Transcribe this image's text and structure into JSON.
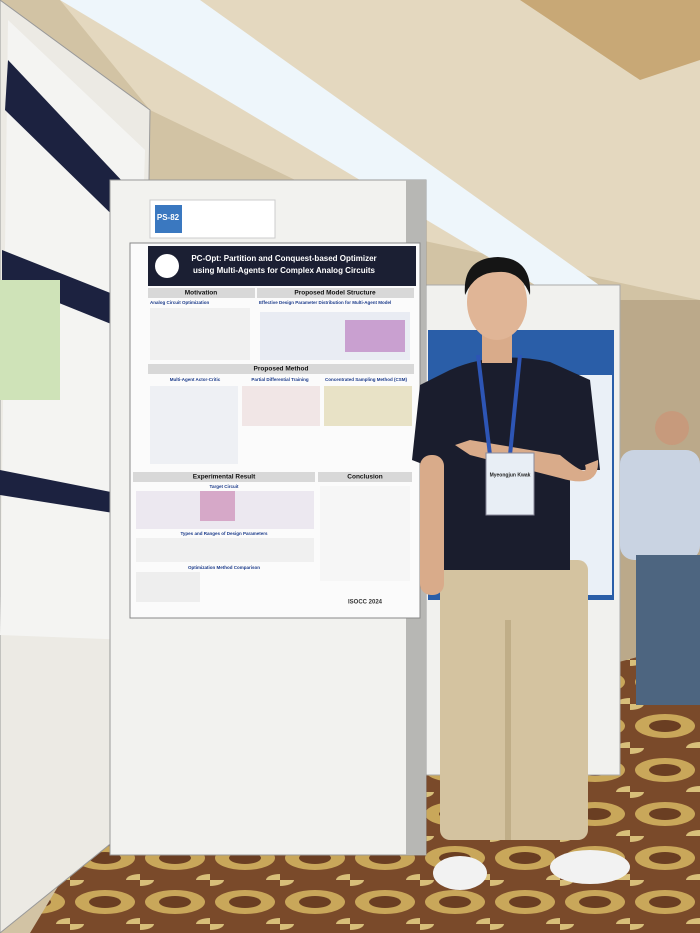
{
  "poster": {
    "badge": "PS-82",
    "title": [
      "PC-Opt: Partition and Conquest-based Optimizer",
      "using Multi-Agents for Complex Analog Circuits"
    ],
    "sections": {
      "motivation": "Motivation",
      "model_structure": "Proposed Model Structure",
      "method": "Proposed Method",
      "experimental": "Experimental Result",
      "conclusion": "Conclusion"
    },
    "subsections": [
      "Analog Circuit Optimization",
      "Effective Design Parameter Distribution for Multi-Agent Model",
      "Multi-Agent Actor-Critic",
      "Partial Differential Training",
      "Concentrated Sampling Method (CSM)",
      "Target Circuit",
      "Types and Ranges of Design Parameters",
      "Optimization Method Comparison"
    ],
    "footer_logo": "ISOCC 2024"
  },
  "name_badge": "Myeongjun Kwak"
}
